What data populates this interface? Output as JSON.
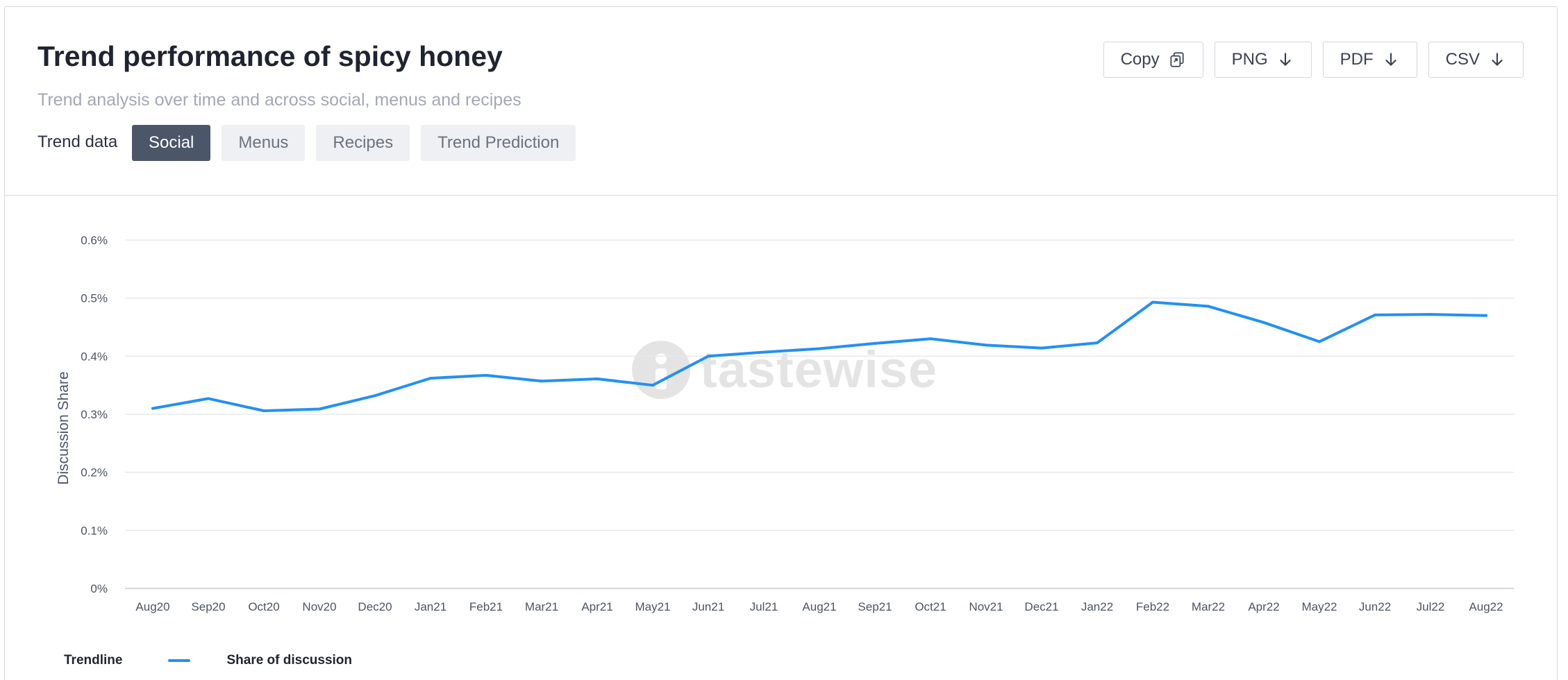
{
  "header": {
    "title": "Trend performance of spicy honey",
    "subtitle": "Trend analysis over time and across social, menus and recipes",
    "trend_label": "Trend data",
    "tabs": [
      {
        "label": "Social",
        "active": true
      },
      {
        "label": "Menus",
        "active": false
      },
      {
        "label": "Recipes",
        "active": false
      },
      {
        "label": "Trend Prediction",
        "active": false
      }
    ]
  },
  "actions": {
    "copy_label": "Copy",
    "png_label": "PNG",
    "pdf_label": "PDF",
    "csv_label": "CSV"
  },
  "watermark": "tastewise",
  "legend": {
    "title": "Trendline",
    "series_label": "Share of discussion"
  },
  "colors": {
    "line": "#2490f2",
    "active_tab": "#4b5669",
    "grid": "#e6e8ec"
  },
  "chart_data": {
    "type": "line",
    "xlabel": "",
    "ylabel": "Discussion Share",
    "ylim": [
      0,
      0.6
    ],
    "y_ticks": [
      "0%",
      "0.1%",
      "0.2%",
      "0.3%",
      "0.4%",
      "0.5%",
      "0.6%"
    ],
    "y_tick_values": [
      0,
      0.1,
      0.2,
      0.3,
      0.4,
      0.5,
      0.6
    ],
    "grid": true,
    "legend_position": "bottom-left",
    "categories": [
      "Aug20",
      "Sep20",
      "Oct20",
      "Nov20",
      "Dec20",
      "Jan21",
      "Feb21",
      "Mar21",
      "Apr21",
      "May21",
      "Jun21",
      "Jul21",
      "Aug21",
      "Sep21",
      "Oct21",
      "Nov21",
      "Dec21",
      "Jan22",
      "Feb22",
      "Mar22",
      "Apr22",
      "May22",
      "Jun22",
      "Jul22",
      "Aug22"
    ],
    "series": [
      {
        "name": "Share of discussion",
        "values": [
          0.31,
          0.327,
          0.306,
          0.309,
          0.332,
          0.362,
          0.367,
          0.357,
          0.361,
          0.35,
          0.4,
          0.407,
          0.413,
          0.422,
          0.43,
          0.419,
          0.414,
          0.423,
          0.493,
          0.486,
          0.458,
          0.425,
          0.471,
          0.472,
          0.47
        ]
      }
    ]
  }
}
